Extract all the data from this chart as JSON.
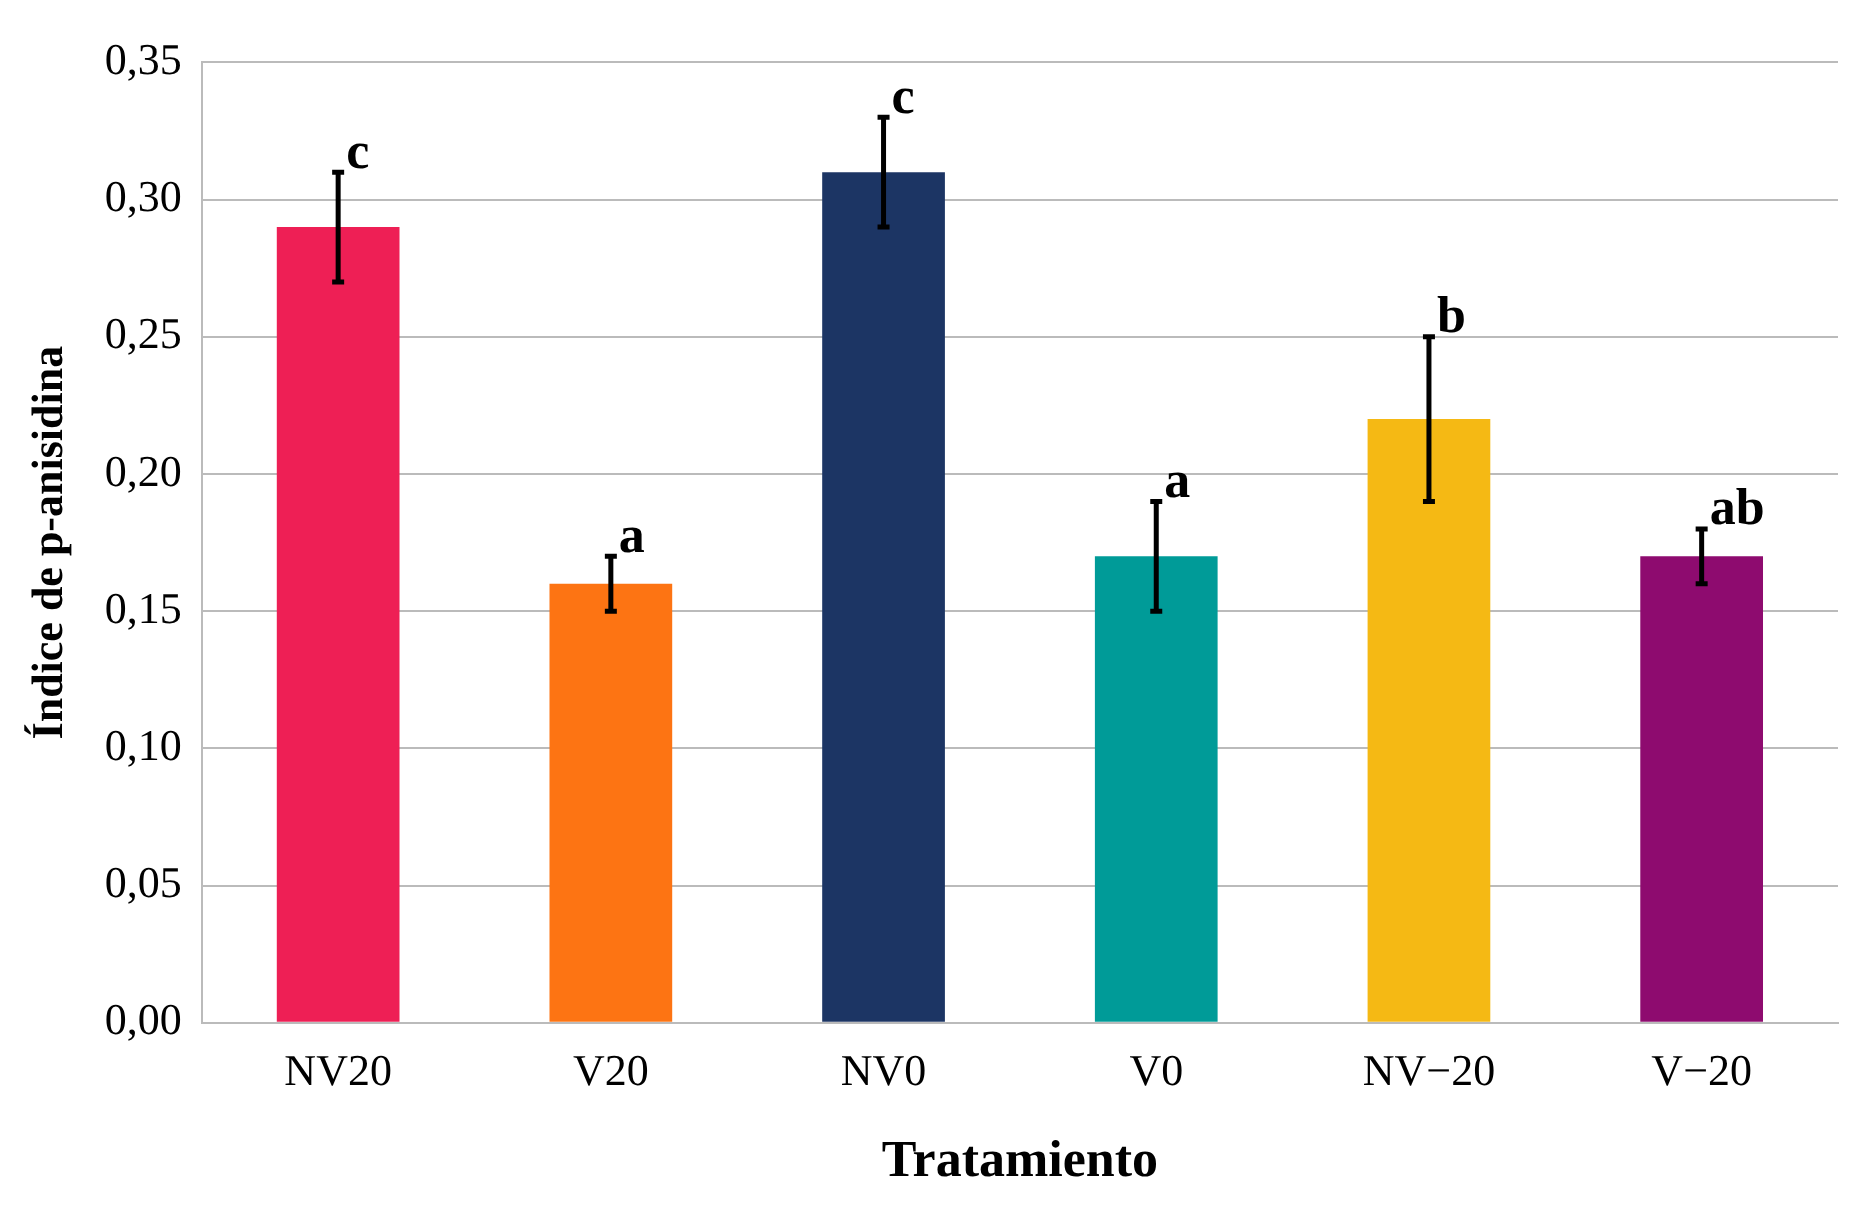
{
  "chart_data": {
    "type": "bar",
    "xlabel": "Tratamiento",
    "ylabel": "Índice de p-anisidina",
    "categories": [
      "NV20",
      "V20",
      "NV0",
      "V0",
      "NV−20",
      "V−20"
    ],
    "values": [
      0.29,
      0.16,
      0.31,
      0.17,
      0.22,
      0.17
    ],
    "colors": [
      "#ee1f55",
      "#fd7413",
      "#1c3564",
      "#009b98",
      "#f5b914",
      "#8e0b6f"
    ],
    "errors": [
      0.02,
      0.01,
      0.02,
      0.02,
      0.03,
      0.01
    ],
    "ylim": [
      0,
      0.35
    ],
    "yticks": [
      {
        "value": 0,
        "label": "0,00"
      },
      {
        "value": 0.05,
        "label": "0,05"
      },
      {
        "value": 0.1,
        "label": "0,10"
      },
      {
        "value": 0.15,
        "label": "0,15"
      },
      {
        "value": 0.2,
        "label": "0,20"
      },
      {
        "value": 0.25,
        "label": "0,25"
      },
      {
        "value": 0.3,
        "label": "0,30"
      },
      {
        "value": 0.35,
        "label": "0,35"
      }
    ],
    "grid": "y",
    "legend": false,
    "annotations": [
      {
        "text": "c",
        "x": "NV20",
        "y": 0.31
      },
      {
        "text": "a",
        "x": "V20",
        "y": 0.17
      },
      {
        "text": "c",
        "x": "NV0",
        "y": 0.33
      },
      {
        "text": "a",
        "x": "V0",
        "y": 0.19
      },
      {
        "text": "b",
        "x": "NV−20",
        "y": 0.25
      },
      {
        "text": "ab",
        "x": "V−20",
        "y": 0.18
      }
    ]
  }
}
